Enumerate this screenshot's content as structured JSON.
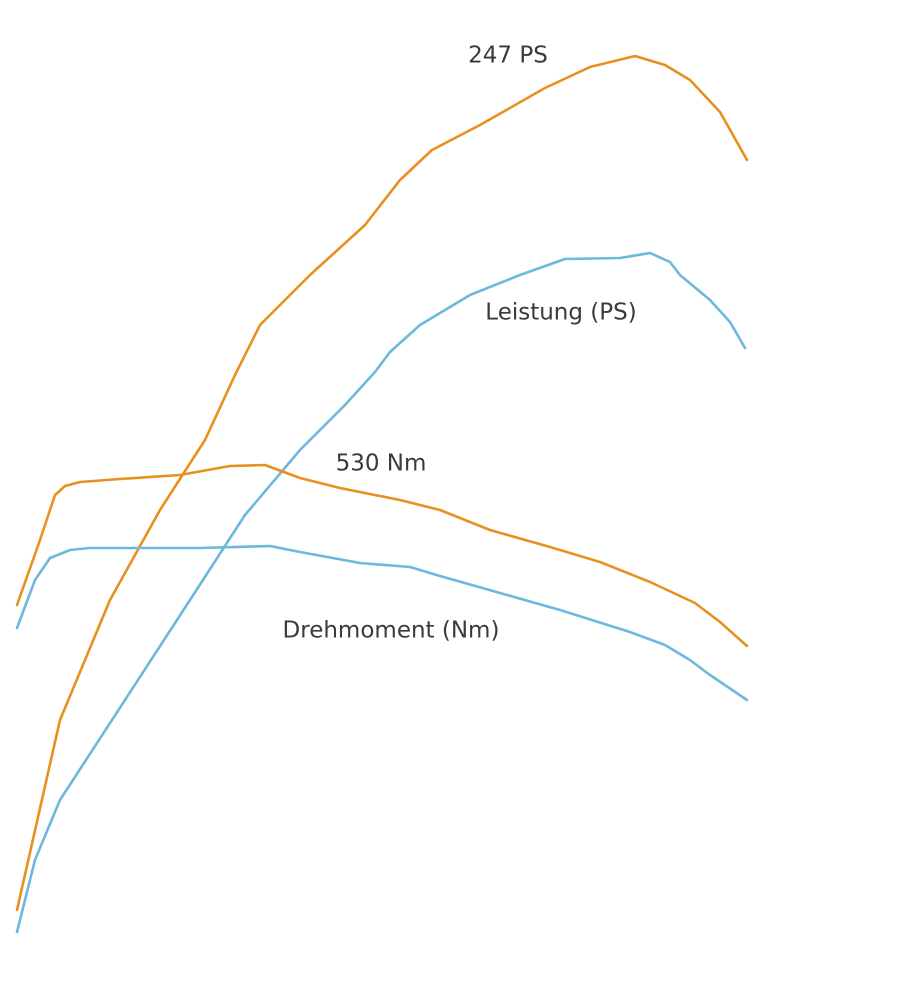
{
  "labels": {
    "peak_power": "247 PS",
    "power_curve": "Leistung (PS)",
    "peak_torque": "530 Nm",
    "torque_curve": "Drehmoment (Nm)"
  }
}
